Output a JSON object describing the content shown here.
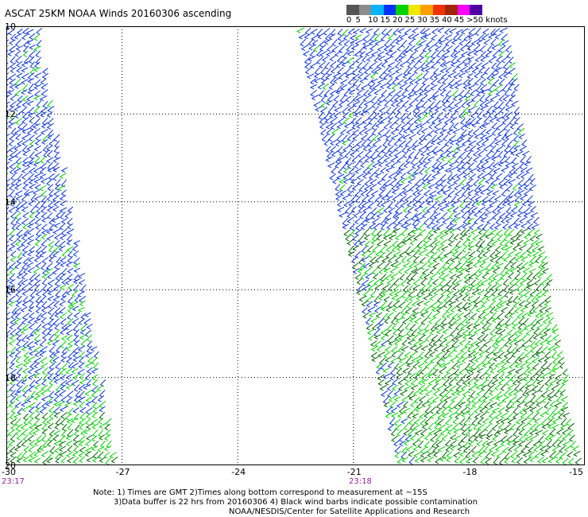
{
  "title": "ASCAT 25KM NOAA Winds 20160306 ascending",
  "legend": {
    "labels": [
      "0",
      "5",
      "10",
      "15",
      "20",
      "25",
      "30",
      "35",
      "40",
      "45",
      ">50 knots"
    ],
    "colors": [
      "#555555",
      "#8c8c8c",
      "#00b4ff",
      "#0032ff",
      "#00d200",
      "#f0e600",
      "#ffa000",
      "#f03200",
      "#a02800",
      "#ff00ff",
      "#5000a0"
    ]
  },
  "map": {
    "x_ticks": [
      "-30",
      "-27",
      "-24",
      "-21",
      "-18",
      "-15"
    ],
    "y_ticks": [
      "10",
      "12",
      "14",
      "16",
      "18",
      "20"
    ],
    "barb_colors": {
      "light": "#00d200",
      "dark": "#006400",
      "blue": "#0a32dc"
    },
    "grid": true
  },
  "times": [
    "23:17",
    "23:18"
  ],
  "notes": [
    "Note: 1) Times are GMT 2)Times along bottom correspond to measurement at ~15S",
    "3)Data buffer is 22 hrs from 20160306 4) Black wind barbs indicate possible contamination",
    "NOAA/NESDIS/Center for Satellite Applications and Research"
  ]
}
